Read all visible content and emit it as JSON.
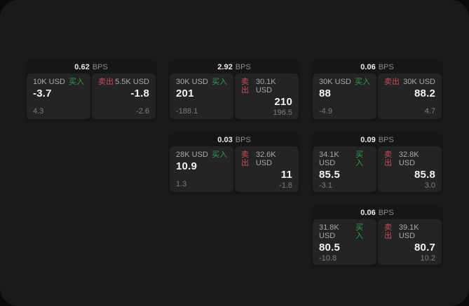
{
  "labels": {
    "bps_unit": "BPS",
    "buy": "买入",
    "sell": "卖出"
  },
  "colors": {
    "buy": "#2f9e54",
    "sell": "#c94b5c",
    "surface": "#1a1a1a",
    "card": "#161616",
    "panel": "#242424"
  },
  "cards": [
    {
      "bps": "0.62",
      "buy": {
        "size": "10K USD",
        "main": "-3.7",
        "sub": "4.3"
      },
      "sell": {
        "size": "5.5K USD",
        "main": "-1.8",
        "sub": "-2.6"
      }
    },
    {
      "bps": "2.92",
      "buy": {
        "size": "30K USD",
        "main": "201",
        "sub": "-188.1"
      },
      "sell": {
        "size": "30.1K USD",
        "main": "210",
        "sub": "196.5"
      }
    },
    {
      "bps": "0.06",
      "buy": {
        "size": "30K USD",
        "main": "88",
        "sub": "-4.9"
      },
      "sell": {
        "size": "30K USD",
        "main": "88.2",
        "sub": "4.7"
      }
    },
    {
      "bps": "0.03",
      "buy": {
        "size": "28K USD",
        "main": "10.9",
        "sub": "1.3"
      },
      "sell": {
        "size": "32.6K USD",
        "main": "11",
        "sub": "-1.8"
      }
    },
    {
      "bps": "0.09",
      "buy": {
        "size": "34.1K USD",
        "main": "85.5",
        "sub": "-3.1"
      },
      "sell": {
        "size": "32.8K USD",
        "main": "85.8",
        "sub": "3.0"
      }
    },
    {
      "bps": "0.06",
      "buy": {
        "size": "31.8K USD",
        "main": "80.5",
        "sub": "-10.8"
      },
      "sell": {
        "size": "39.1K USD",
        "main": "80.7",
        "sub": "10.2"
      }
    }
  ]
}
